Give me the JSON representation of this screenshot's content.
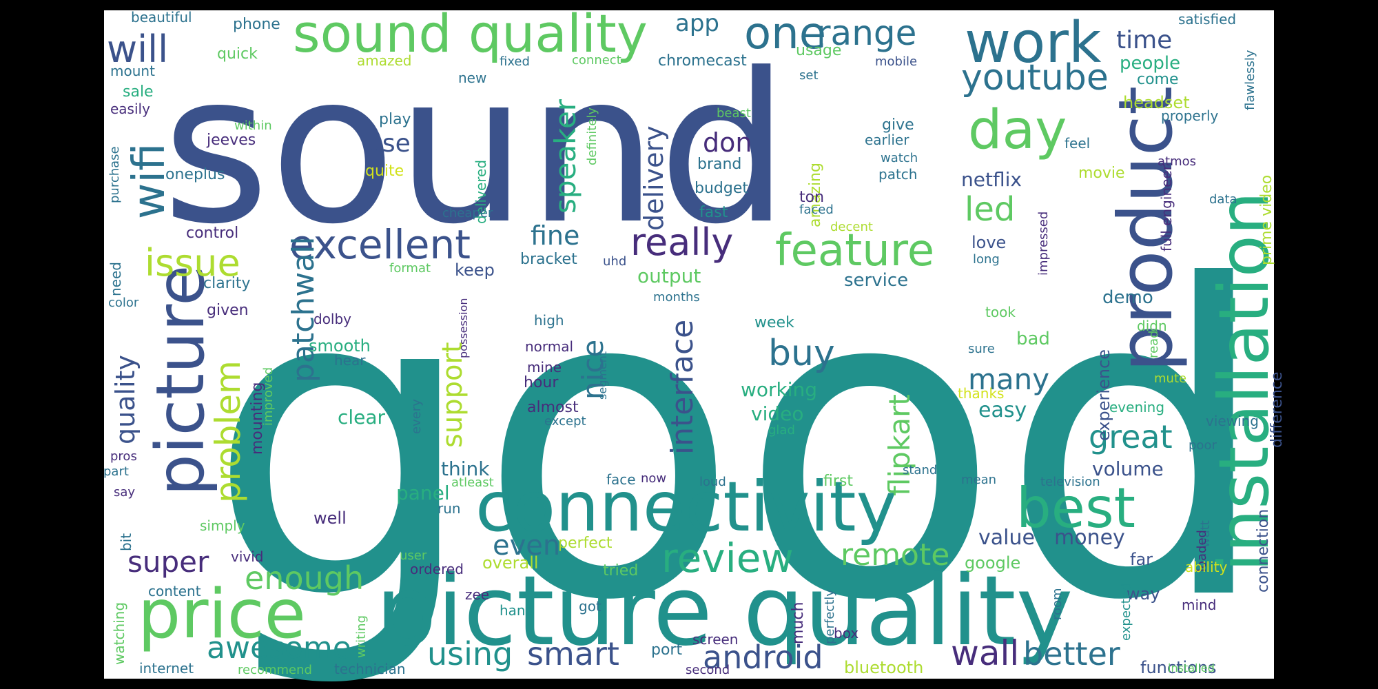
{
  "palette": {
    "dark_purple": "#472d7b",
    "indigo": "#3b528b",
    "blue": "#2c728e",
    "teal": "#21918c",
    "sea_green": "#28ae80",
    "green": "#5ec962",
    "lime": "#addc30",
    "yellow": "#d2e21b",
    "deep_purple": "#440154",
    "background": "#ffffff",
    "frame": "#000000"
  },
  "words": [
    {
      "text": "good",
      "color": "#21918c"
    },
    {
      "text": "sound",
      "color": "#3b528b"
    },
    {
      "text": "picture quality",
      "color": "#21918c"
    },
    {
      "text": "connectivity",
      "color": "#21918c"
    },
    {
      "text": "installation",
      "color": "#28ae80"
    },
    {
      "text": "product",
      "color": "#3b528b"
    },
    {
      "text": "price",
      "color": "#5ec962"
    },
    {
      "text": "picture",
      "color": "#3b528b"
    },
    {
      "text": "sound quality",
      "color": "#5ec962"
    },
    {
      "text": "work",
      "color": "#2c728e"
    },
    {
      "text": "best",
      "color": "#28ae80"
    },
    {
      "text": "day",
      "color": "#5ec962"
    },
    {
      "text": "feature",
      "color": "#5ec962"
    },
    {
      "text": "excellent",
      "color": "#3b528b"
    },
    {
      "text": "review",
      "color": "#28ae80"
    },
    {
      "text": "one",
      "color": "#2c728e"
    },
    {
      "text": "wifi",
      "color": "#2c728e"
    },
    {
      "text": "really",
      "color": "#472d7b"
    },
    {
      "text": "issue",
      "color": "#addc30"
    },
    {
      "text": "will",
      "color": "#3b528b"
    },
    {
      "text": "youtube",
      "color": "#2c728e"
    },
    {
      "text": "range",
      "color": "#2c728e"
    },
    {
      "text": "problem",
      "color": "#addc30"
    },
    {
      "text": "enough",
      "color": "#5ec962"
    },
    {
      "text": "great",
      "color": "#21918c"
    },
    {
      "text": "led",
      "color": "#5ec962"
    },
    {
      "text": "buy",
      "color": "#2c728e"
    },
    {
      "text": "remote",
      "color": "#5ec962"
    },
    {
      "text": "awesome",
      "color": "#21918c"
    },
    {
      "text": "android",
      "color": "#3b528b"
    },
    {
      "text": "wall",
      "color": "#472d7b"
    },
    {
      "text": "better",
      "color": "#2c728e"
    },
    {
      "text": "using",
      "color": "#21918c"
    },
    {
      "text": "smart",
      "color": "#3b528b"
    },
    {
      "text": "interface",
      "color": "#3b528b"
    },
    {
      "text": "super",
      "color": "#472d7b"
    },
    {
      "text": "patchwall",
      "color": "#2c728e"
    },
    {
      "text": "flipkart",
      "color": "#5ec962"
    },
    {
      "text": "speaker",
      "color": "#28ae80"
    },
    {
      "text": "support",
      "color": "#addc30"
    },
    {
      "text": "nice",
      "color": "#2c728e"
    },
    {
      "text": "many",
      "color": "#2c728e"
    },
    {
      "text": "even",
      "color": "#2c728e"
    },
    {
      "text": "delivery",
      "color": "#3b528b"
    },
    {
      "text": "quality",
      "color": "#3b528b"
    },
    {
      "text": "fine",
      "color": "#2c728e"
    },
    {
      "text": "use",
      "color": "#3b528b"
    },
    {
      "text": "don",
      "color": "#472d7b"
    },
    {
      "text": "time",
      "color": "#3b528b"
    },
    {
      "text": "app",
      "color": "#2c728e"
    },
    {
      "text": "money",
      "color": "#3b528b"
    },
    {
      "text": "value",
      "color": "#3b528b"
    },
    {
      "text": "volume",
      "color": "#3b528b"
    },
    {
      "text": "easy",
      "color": "#21918c"
    },
    {
      "text": "netflix",
      "color": "#3b528b"
    },
    {
      "text": "people",
      "color": "#28ae80"
    },
    {
      "text": "headset",
      "color": "#addc30"
    },
    {
      "text": "working",
      "color": "#28ae80"
    },
    {
      "text": "video",
      "color": "#28ae80"
    },
    {
      "text": "panel",
      "color": "#28ae80"
    },
    {
      "text": "clear",
      "color": "#28ae80"
    },
    {
      "text": "think",
      "color": "#2c728e"
    },
    {
      "text": "output",
      "color": "#5ec962"
    },
    {
      "text": "service",
      "color": "#2c728e"
    },
    {
      "text": "demo",
      "color": "#2c728e"
    },
    {
      "text": "love",
      "color": "#3b528b"
    },
    {
      "text": "bad",
      "color": "#5ec962"
    },
    {
      "text": "experience",
      "color": "#3b528b"
    },
    {
      "text": "difference",
      "color": "#3b528b"
    },
    {
      "text": "connection",
      "color": "#3b528b"
    },
    {
      "text": "functions",
      "color": "#3b528b"
    },
    {
      "text": "bluetooth",
      "color": "#addc30"
    },
    {
      "text": "google",
      "color": "#5ec962"
    },
    {
      "text": "way",
      "color": "#3b528b"
    },
    {
      "text": "far",
      "color": "#3b528b"
    },
    {
      "text": "much",
      "color": "#472d7b"
    },
    {
      "text": "port",
      "color": "#2c728e"
    },
    {
      "text": "tried",
      "color": "#5ec962"
    },
    {
      "text": "perfect",
      "color": "#addc30"
    },
    {
      "text": "overall",
      "color": "#addc30"
    },
    {
      "text": "first",
      "color": "#5ec962"
    },
    {
      "text": "stand",
      "color": "#2c728e"
    },
    {
      "text": "mean",
      "color": "#2c728e"
    },
    {
      "text": "week",
      "color": "#21918c"
    },
    {
      "text": "smooth",
      "color": "#28ae80"
    },
    {
      "text": "well",
      "color": "#472d7b"
    },
    {
      "text": "given",
      "color": "#472d7b"
    },
    {
      "text": "clarity",
      "color": "#2c728e"
    },
    {
      "text": "mounting",
      "color": "#472d7b"
    },
    {
      "text": "keep",
      "color": "#3b528b"
    },
    {
      "text": "bracket",
      "color": "#2c728e"
    },
    {
      "text": "uhd",
      "color": "#3b528b"
    },
    {
      "text": "control",
      "color": "#472d7b"
    },
    {
      "text": "oneplus",
      "color": "#2c728e"
    },
    {
      "text": "jeeves",
      "color": "#472d7b"
    },
    {
      "text": "sale",
      "color": "#28ae80"
    },
    {
      "text": "quick",
      "color": "#5ec962"
    },
    {
      "text": "mount",
      "color": "#2c728e"
    },
    {
      "text": "amazed",
      "color": "#addc30"
    },
    {
      "text": "phone",
      "color": "#2c728e"
    },
    {
      "text": "beautiful",
      "color": "#2c728e"
    },
    {
      "text": "easily",
      "color": "#472d7b"
    },
    {
      "text": "within",
      "color": "#5ec962"
    },
    {
      "text": "purchase",
      "color": "#2c728e"
    },
    {
      "text": "play",
      "color": "#2c728e"
    },
    {
      "text": "quite",
      "color": "#d2e21b"
    },
    {
      "text": "new",
      "color": "#2c728e"
    },
    {
      "text": "delivered",
      "color": "#28ae80"
    },
    {
      "text": "definitely",
      "color": "#5ec962"
    },
    {
      "text": "fixed",
      "color": "#2c728e"
    },
    {
      "text": "connect",
      "color": "#5ec962"
    },
    {
      "text": "chromecast",
      "color": "#2c728e"
    },
    {
      "text": "usage",
      "color": "#5ec962"
    },
    {
      "text": "amazing",
      "color": "#addc30"
    },
    {
      "text": "beast",
      "color": "#5ec962"
    },
    {
      "text": "brand",
      "color": "#2c728e"
    },
    {
      "text": "budget",
      "color": "#2c728e"
    },
    {
      "text": "fast",
      "color": "#21918c"
    },
    {
      "text": "ton",
      "color": "#472d7b"
    },
    {
      "text": "faced",
      "color": "#2c728e"
    },
    {
      "text": "decent",
      "color": "#addc30"
    },
    {
      "text": "give",
      "color": "#2c728e"
    },
    {
      "text": "earlier",
      "color": "#2c728e"
    },
    {
      "text": "watch",
      "color": "#2c728e"
    },
    {
      "text": "patch",
      "color": "#2c728e"
    },
    {
      "text": "set",
      "color": "#2c728e"
    },
    {
      "text": "mobile",
      "color": "#3b528b"
    },
    {
      "text": "come",
      "color": "#21918c"
    },
    {
      "text": "properly",
      "color": "#2c728e"
    },
    {
      "text": "feel",
      "color": "#2c728e"
    },
    {
      "text": "atmos",
      "color": "#472d7b"
    },
    {
      "text": "movie",
      "color": "#addc30"
    },
    {
      "text": "satisfied",
      "color": "#2c728e"
    },
    {
      "text": "flawlessly",
      "color": "#2c728e"
    },
    {
      "text": "prime video",
      "color": "#addc30"
    },
    {
      "text": "full engineer",
      "color": "#472d7b"
    },
    {
      "text": "data",
      "color": "#2c728e"
    },
    {
      "text": "impressed",
      "color": "#472d7b"
    },
    {
      "text": "long",
      "color": "#2c728e"
    },
    {
      "text": "took",
      "color": "#5ec962"
    },
    {
      "text": "sure",
      "color": "#2c728e"
    },
    {
      "text": "thanks",
      "color": "#d2e21b"
    },
    {
      "text": "didn",
      "color": "#5ec962"
    },
    {
      "text": "read",
      "color": "#5ec962"
    },
    {
      "text": "mute",
      "color": "#addc30"
    },
    {
      "text": "evening",
      "color": "#28ae80"
    },
    {
      "text": "viewing",
      "color": "#2c728e"
    },
    {
      "text": "poor",
      "color": "#2c728e"
    },
    {
      "text": "television",
      "color": "#2c728e"
    },
    {
      "text": "watt",
      "color": "#2c728e"
    },
    {
      "text": "loaded",
      "color": "#472d7b"
    },
    {
      "text": "ability",
      "color": "#d2e21b"
    },
    {
      "text": "mind",
      "color": "#472d7b"
    },
    {
      "text": "expected",
      "color": "#21918c"
    },
    {
      "text": "room",
      "color": "#2c728e"
    },
    {
      "text": "installed",
      "color": "#5ec962"
    },
    {
      "text": "format",
      "color": "#5ec962"
    },
    {
      "text": "months",
      "color": "#2c728e"
    },
    {
      "text": "possession",
      "color": "#472d7b"
    },
    {
      "text": "high",
      "color": "#2c728e"
    },
    {
      "text": "normal",
      "color": "#472d7b"
    },
    {
      "text": "mine",
      "color": "#472d7b"
    },
    {
      "text": "hour",
      "color": "#472d7b"
    },
    {
      "text": "almost",
      "color": "#472d7b"
    },
    {
      "text": "except",
      "color": "#2c728e"
    },
    {
      "text": "segment",
      "color": "#2c728e"
    },
    {
      "text": "glad",
      "color": "#28ae80"
    },
    {
      "text": "every",
      "color": "#2c728e"
    },
    {
      "text": "dolby",
      "color": "#472d7b"
    },
    {
      "text": "hear",
      "color": "#2c728e"
    },
    {
      "text": "improved",
      "color": "#5ec962"
    },
    {
      "text": "need",
      "color": "#2c728e"
    },
    {
      "text": "color",
      "color": "#2c728e"
    },
    {
      "text": "pros",
      "color": "#472d7b"
    },
    {
      "text": "part",
      "color": "#2c728e"
    },
    {
      "text": "say",
      "color": "#472d7b"
    },
    {
      "text": "bit",
      "color": "#2c728e"
    },
    {
      "text": "simply",
      "color": "#5ec962"
    },
    {
      "text": "vivid",
      "color": "#472d7b"
    },
    {
      "text": "content",
      "color": "#2c728e"
    },
    {
      "text": "watching",
      "color": "#5ec962"
    },
    {
      "text": "internet",
      "color": "#2c728e"
    },
    {
      "text": "recommend",
      "color": "#5ec962"
    },
    {
      "text": "writing",
      "color": "#5ec962"
    },
    {
      "text": "technician",
      "color": "#2c728e"
    },
    {
      "text": "hand",
      "color": "#21918c"
    },
    {
      "text": "got",
      "color": "#2c728e"
    },
    {
      "text": "zee",
      "color": "#472d7b"
    },
    {
      "text": "ordered",
      "color": "#472d7b"
    },
    {
      "text": "user",
      "color": "#5ec962"
    },
    {
      "text": "run",
      "color": "#2c728e"
    },
    {
      "text": "atleast",
      "color": "#5ec962"
    },
    {
      "text": "face",
      "color": "#2c728e"
    },
    {
      "text": "now",
      "color": "#472d7b"
    },
    {
      "text": "loud",
      "color": "#2c728e"
    },
    {
      "text": "cheaper",
      "color": "#2c728e"
    },
    {
      "text": "perfectly",
      "color": "#2c728e"
    },
    {
      "text": "box",
      "color": "#472d7b"
    },
    {
      "text": "screen",
      "color": "#472d7b"
    },
    {
      "text": "second",
      "color": "#472d7b"
    }
  ]
}
